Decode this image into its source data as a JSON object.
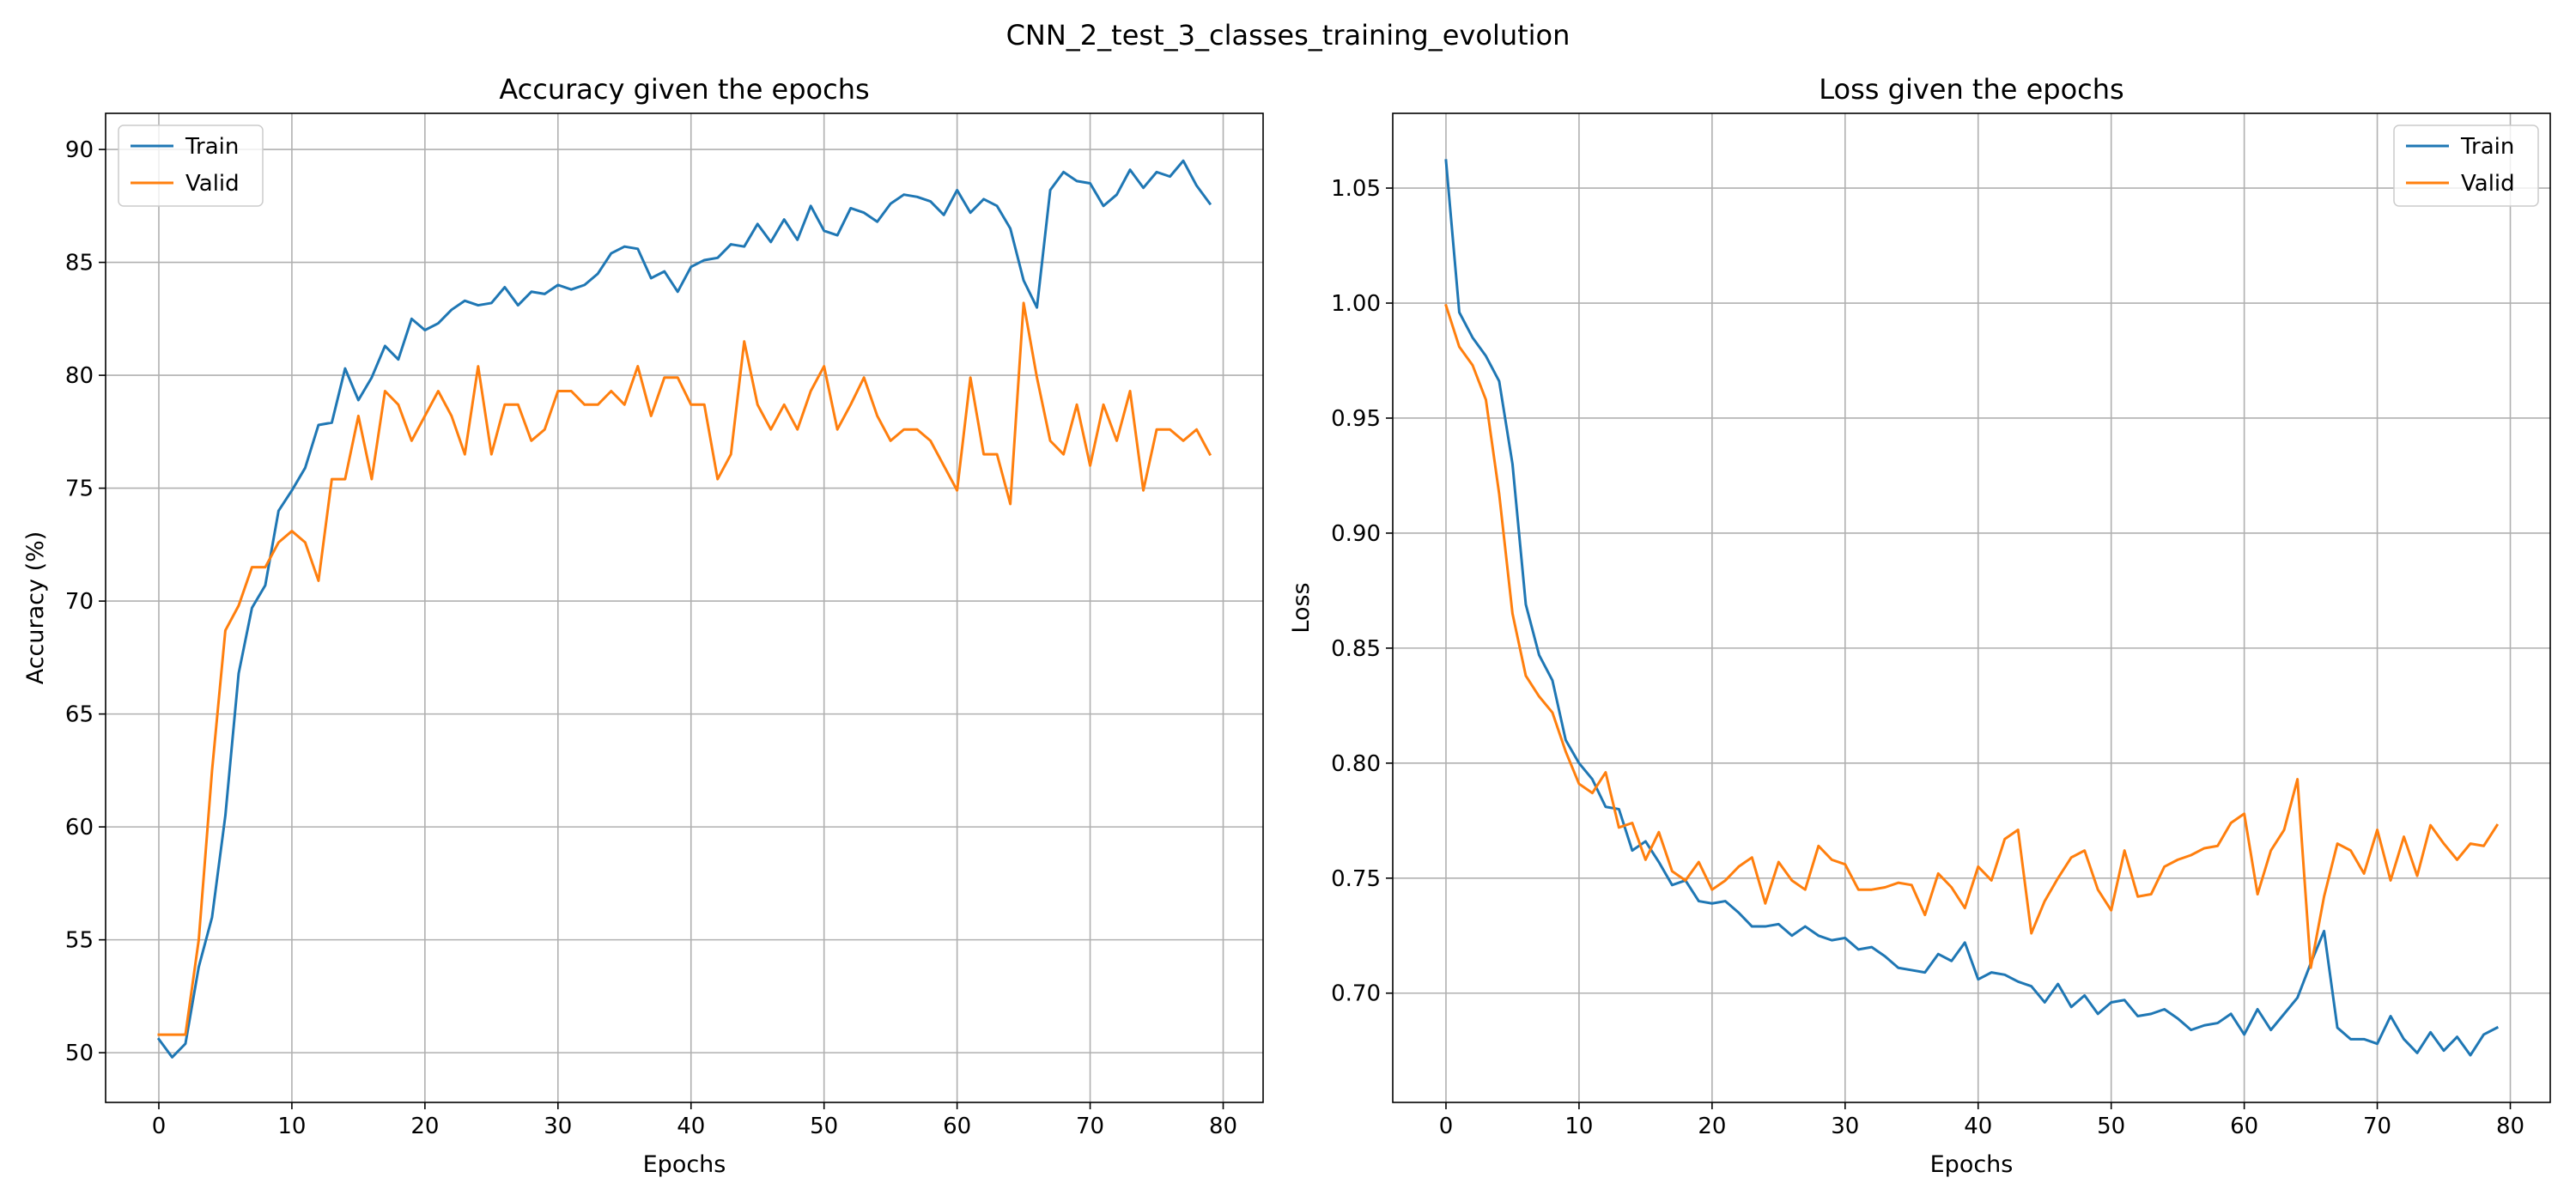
{
  "figure": {
    "suptitle": "CNN_2_test_3_classes_training_evolution"
  },
  "chart_data": [
    {
      "type": "line",
      "title": "Accuracy given the epochs",
      "xlabel": "Epochs",
      "ylabel": "Accuracy (%)",
      "xlim": [
        -4,
        83
      ],
      "ylim": [
        47.8,
        91.6
      ],
      "xticks": [
        0,
        10,
        20,
        30,
        40,
        50,
        60,
        70,
        80
      ],
      "yticks": [
        50,
        55,
        60,
        65,
        70,
        75,
        80,
        85,
        90
      ],
      "grid": true,
      "legend_position": "top-left",
      "series": [
        {
          "name": "Train",
          "color": "#1f77b4",
          "values": [
            50.6,
            49.8,
            50.4,
            53.8,
            56.0,
            60.5,
            66.8,
            69.7,
            70.7,
            74.0,
            74.9,
            75.9,
            77.8,
            77.9,
            80.3,
            78.9,
            79.9,
            81.3,
            80.7,
            82.5,
            82.0,
            82.3,
            82.9,
            83.3,
            83.1,
            83.2,
            83.9,
            83.1,
            83.7,
            83.6,
            84.0,
            83.8,
            84.0,
            84.5,
            85.4,
            85.7,
            85.6,
            84.3,
            84.6,
            83.7,
            84.8,
            85.1,
            85.2,
            85.8,
            85.7,
            86.7,
            85.9,
            86.9,
            86.0,
            87.5,
            86.4,
            86.2,
            87.4,
            87.2,
            86.8,
            87.6,
            88.0,
            87.9,
            87.7,
            87.1,
            88.2,
            87.2,
            87.8,
            87.5,
            86.5,
            84.2,
            83.0,
            88.2,
            89.0,
            88.6,
            88.5,
            87.5,
            88.0,
            89.1,
            88.3,
            89.0,
            88.8,
            89.5,
            88.4,
            87.6
          ]
        },
        {
          "name": "Valid",
          "color": "#ff7f0e",
          "values": [
            50.8,
            50.8,
            50.8,
            55.0,
            62.5,
            68.7,
            69.8,
            71.5,
            71.5,
            72.6,
            73.1,
            72.6,
            70.9,
            75.4,
            75.4,
            78.2,
            75.4,
            79.3,
            78.7,
            77.1,
            78.2,
            79.3,
            78.2,
            76.5,
            80.4,
            76.5,
            78.7,
            78.7,
            77.1,
            77.6,
            79.3,
            79.3,
            78.7,
            78.7,
            79.3,
            78.7,
            80.4,
            78.2,
            79.9,
            79.9,
            78.7,
            78.7,
            75.4,
            76.5,
            81.5,
            78.7,
            77.6,
            78.7,
            77.6,
            79.3,
            80.4,
            77.6,
            78.7,
            79.9,
            78.2,
            77.1,
            77.6,
            77.6,
            77.1,
            76.0,
            74.9,
            79.9,
            76.5,
            76.5,
            74.3,
            83.2,
            79.9,
            77.1,
            76.5,
            78.7,
            76.0,
            78.7,
            77.1,
            79.3,
            74.9,
            77.6,
            77.6,
            77.1,
            77.6,
            76.5
          ]
        }
      ]
    },
    {
      "type": "line",
      "title": "Loss given the epochs",
      "xlabel": "Epochs",
      "ylabel": "Loss",
      "xlim": [
        -4,
        83
      ],
      "ylim": [
        0.6525,
        1.0825
      ],
      "xticks": [
        0,
        10,
        20,
        30,
        40,
        50,
        60,
        70,
        80
      ],
      "yticks": [
        0.7,
        0.75,
        0.8,
        0.85,
        0.9,
        0.95,
        1.0,
        1.05
      ],
      "grid": true,
      "legend_position": "top-right",
      "series": [
        {
          "name": "Train",
          "color": "#1f77b4",
          "values": [
            1.062,
            0.996,
            0.985,
            0.977,
            0.966,
            0.93,
            0.869,
            0.847,
            0.836,
            0.81,
            0.8,
            0.793,
            0.781,
            0.78,
            0.762,
            0.766,
            0.757,
            0.747,
            0.749,
            0.74,
            0.739,
            0.74,
            0.735,
            0.729,
            0.729,
            0.73,
            0.725,
            0.729,
            0.725,
            0.723,
            0.724,
            0.719,
            0.72,
            0.716,
            0.711,
            0.71,
            0.709,
            0.717,
            0.714,
            0.722,
            0.706,
            0.709,
            0.708,
            0.705,
            0.703,
            0.696,
            0.704,
            0.694,
            0.699,
            0.691,
            0.696,
            0.697,
            0.69,
            0.691,
            0.693,
            0.689,
            0.684,
            0.686,
            0.687,
            0.691,
            0.682,
            0.693,
            0.684,
            0.691,
            0.698,
            0.713,
            0.727,
            0.685,
            0.68,
            0.68,
            0.678,
            0.69,
            0.68,
            0.674,
            0.683,
            0.675,
            0.681,
            0.673,
            0.682,
            0.685
          ]
        },
        {
          "name": "Valid",
          "color": "#ff7f0e",
          "values": [
            0.999,
            0.981,
            0.973,
            0.958,
            0.917,
            0.865,
            0.838,
            0.829,
            0.822,
            0.805,
            0.791,
            0.787,
            0.796,
            0.772,
            0.774,
            0.758,
            0.77,
            0.753,
            0.749,
            0.757,
            0.745,
            0.749,
            0.755,
            0.759,
            0.739,
            0.757,
            0.749,
            0.745,
            0.764,
            0.758,
            0.756,
            0.745,
            0.745,
            0.746,
            0.748,
            0.747,
            0.734,
            0.752,
            0.746,
            0.737,
            0.755,
            0.749,
            0.767,
            0.771,
            0.726,
            0.74,
            0.75,
            0.759,
            0.762,
            0.745,
            0.736,
            0.762,
            0.742,
            0.743,
            0.755,
            0.758,
            0.76,
            0.763,
            0.764,
            0.774,
            0.778,
            0.743,
            0.762,
            0.771,
            0.793,
            0.711,
            0.742,
            0.765,
            0.762,
            0.752,
            0.771,
            0.749,
            0.768,
            0.751,
            0.773,
            0.765,
            0.758,
            0.765,
            0.764,
            0.773
          ]
        }
      ]
    }
  ]
}
